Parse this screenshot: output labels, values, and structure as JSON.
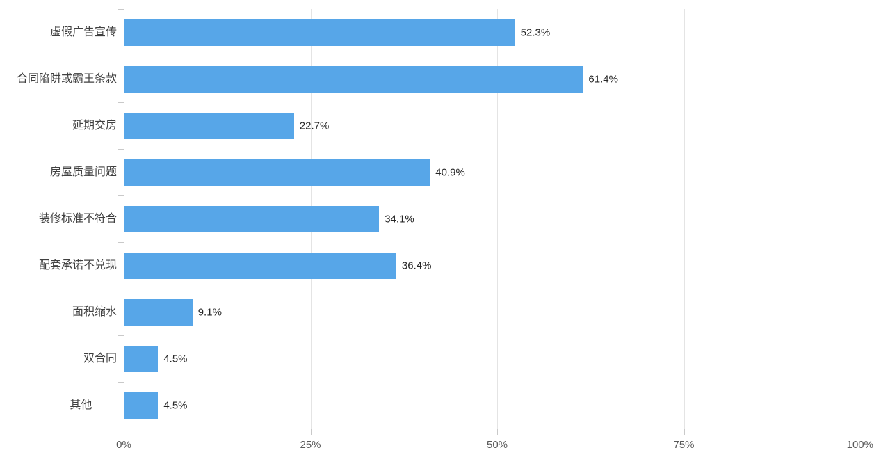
{
  "chart_data": {
    "type": "bar",
    "orientation": "horizontal",
    "title": "",
    "categories": [
      "虚假广告宣传",
      "合同陷阱或霸王条款",
      "延期交房",
      "房屋质量问题",
      "装修标准不符合",
      "配套承诺不兑现",
      "面积缩水",
      "双合同",
      "其他____"
    ],
    "values": [
      52.3,
      61.4,
      22.7,
      40.9,
      34.1,
      36.4,
      9.1,
      4.5,
      4.5
    ],
    "value_labels": [
      "52.3%",
      "61.4%",
      "22.7%",
      "40.9%",
      "34.1%",
      "36.4%",
      "9.1%",
      "4.5%",
      "4.5%"
    ],
    "xlabel": "",
    "ylabel": "",
    "xlim": [
      0,
      100
    ],
    "x_ticks": [
      {
        "value": 0,
        "label": "0%"
      },
      {
        "value": 25,
        "label": "25%"
      },
      {
        "value": 50,
        "label": "50%"
      },
      {
        "value": 75,
        "label": "75%"
      },
      {
        "value": 100,
        "label": "100%"
      }
    ],
    "grid": true,
    "legend_position": "none",
    "bar_color": "#57a6e8"
  },
  "colors": {
    "background": "#ffffff",
    "bar": "#57a6e8",
    "gridline": "#e4e4e4",
    "axis": "#c9c9c9",
    "category_label": "#404040",
    "value_label": "#262626",
    "tick_label": "#595959"
  }
}
